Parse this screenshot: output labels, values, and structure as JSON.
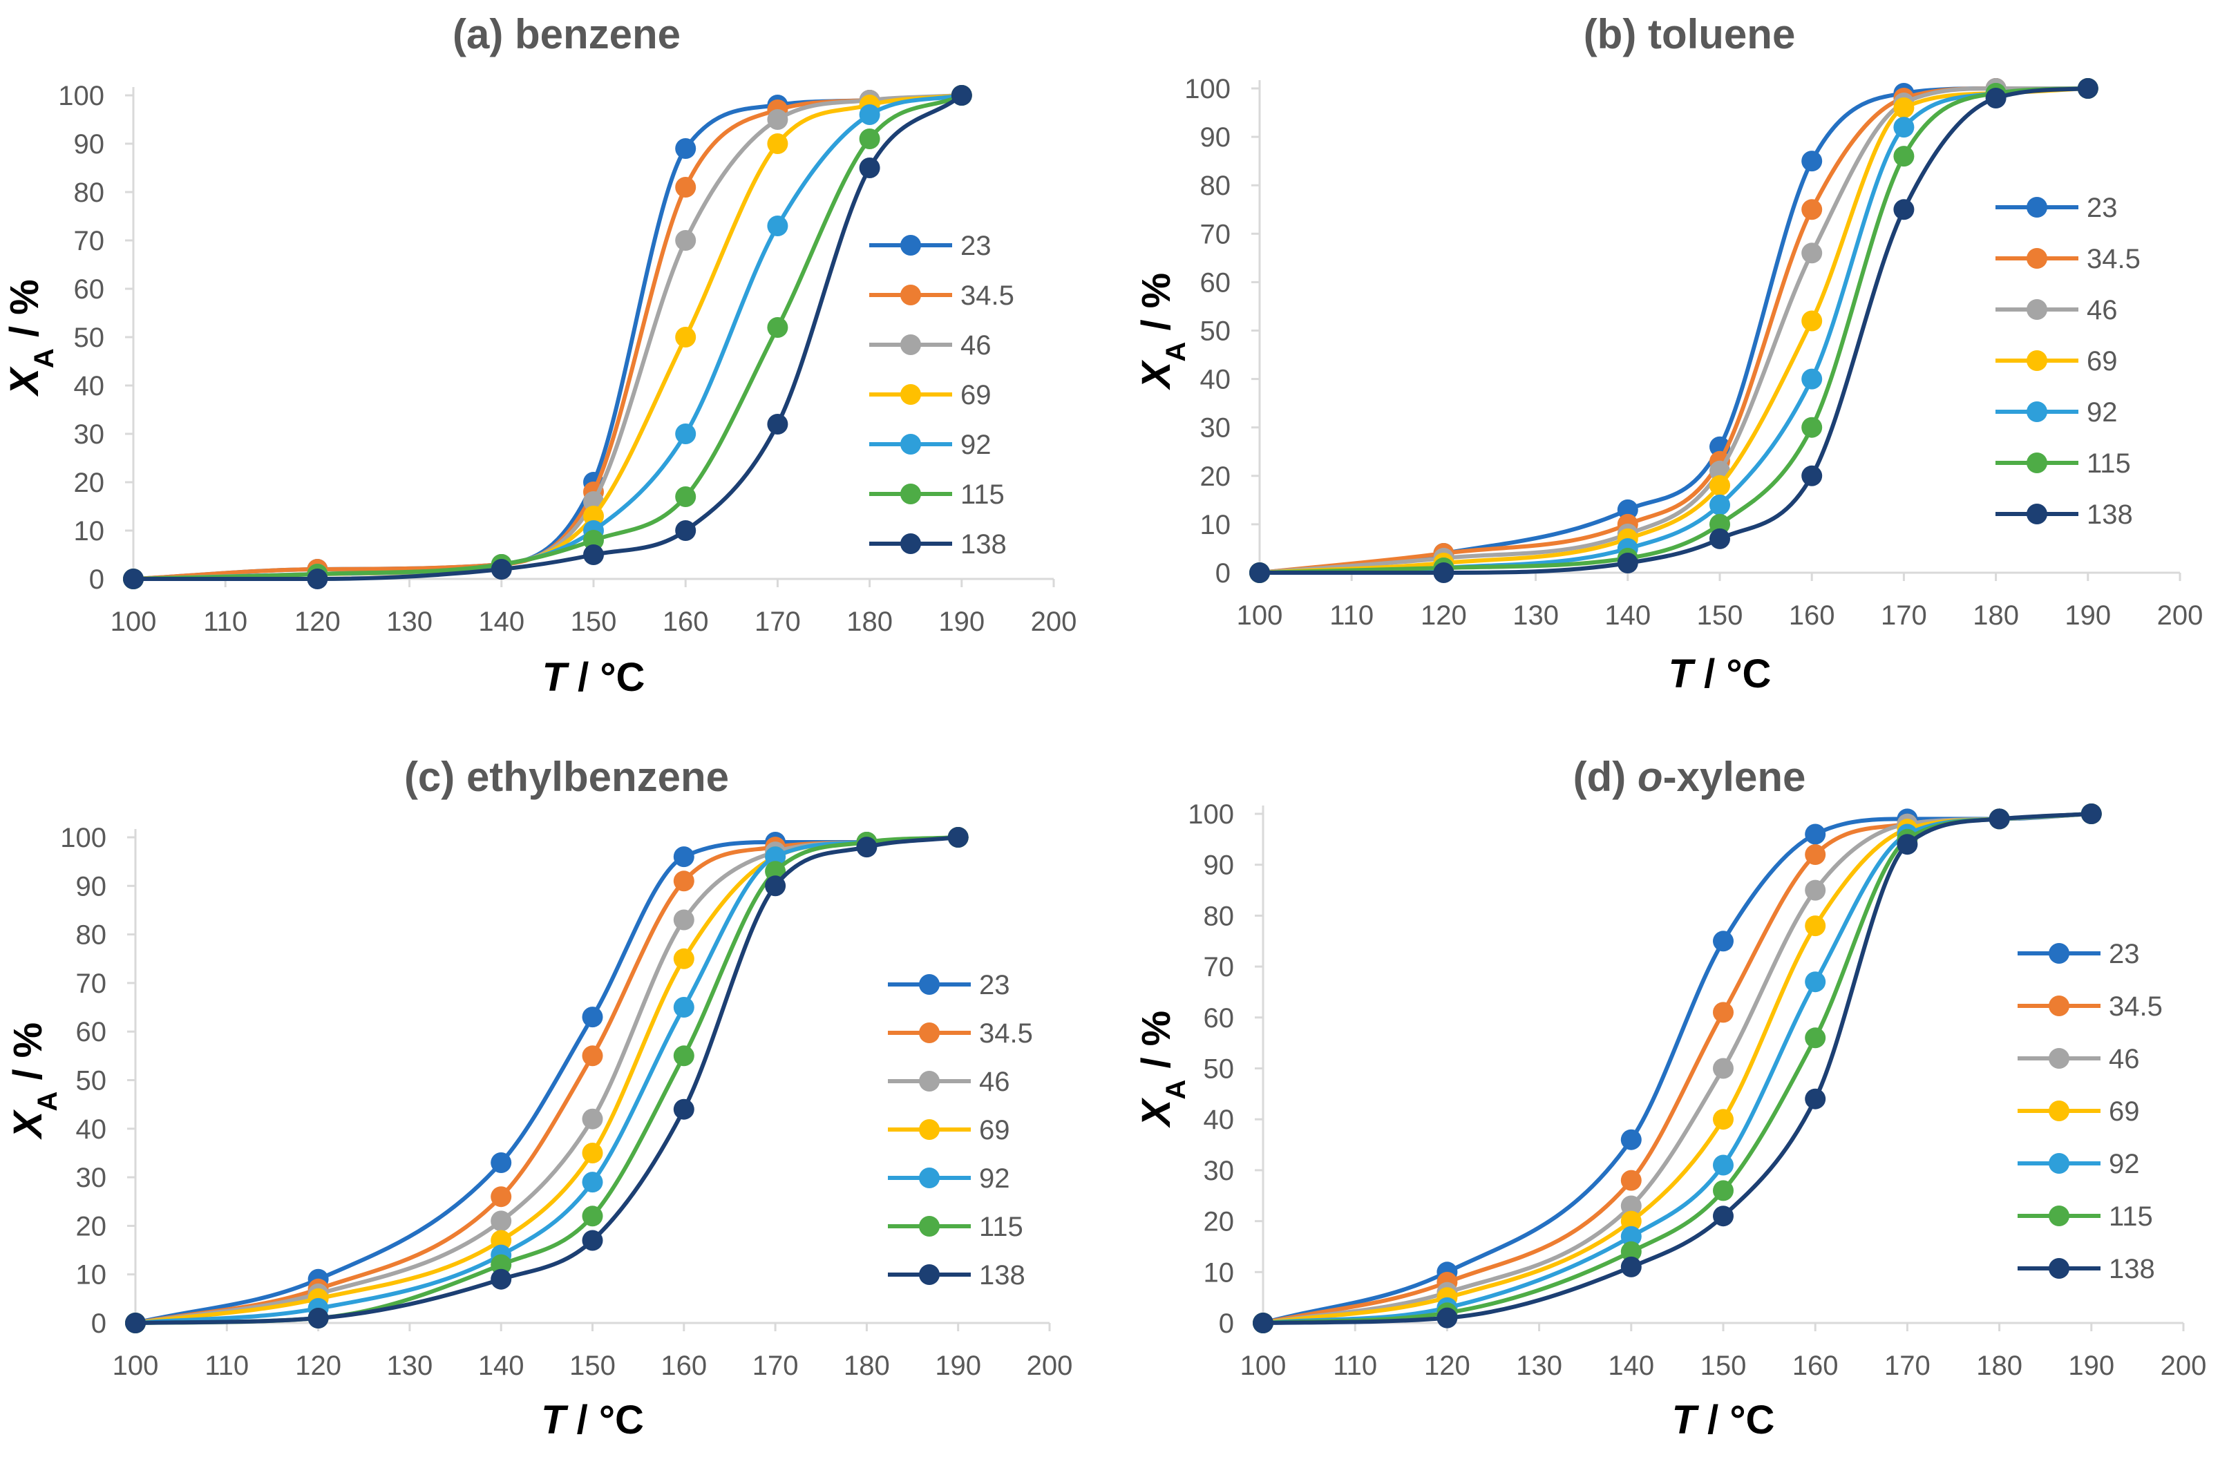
{
  "figure": {
    "series_names": [
      "23",
      "34.5",
      "46",
      "69",
      "92",
      "115",
      "138"
    ],
    "series_colors": [
      "#2470C2",
      "#ED7D31",
      "#A5A5A5",
      "#FFC000",
      "#2E9FDA",
      "#4EAC46",
      "#1C3F73"
    ],
    "axis_color": "#D9D9D9",
    "tick_text_color": "#595959"
  },
  "chart_data": [
    {
      "type": "line",
      "title_prefix": "(a) ",
      "title_main": "benzene",
      "title_suffix": "",
      "xlabel_var": "T",
      "xlabel_unit": " / °C",
      "ylabel_var": "X",
      "ylabel_sub": "A",
      "ylabel_unit": " / %",
      "xlim": [
        100,
        200
      ],
      "ylim": [
        0,
        100
      ],
      "x_ticks": [
        100,
        110,
        120,
        130,
        140,
        150,
        160,
        170,
        180,
        190,
        200
      ],
      "y_ticks": [
        0,
        10,
        20,
        30,
        40,
        50,
        60,
        70,
        80,
        90,
        100
      ],
      "legend_position": "right",
      "series": [
        {
          "name": "23",
          "x": [
            100,
            120,
            140,
            150,
            160,
            170,
            180,
            190
          ],
          "values": [
            0,
            2,
            3,
            20,
            89,
            98,
            99,
            100
          ]
        },
        {
          "name": "34.5",
          "x": [
            100,
            120,
            140,
            150,
            160,
            170,
            180,
            190
          ],
          "values": [
            0,
            2,
            3,
            18,
            81,
            97,
            99,
            100
          ]
        },
        {
          "name": "46",
          "x": [
            100,
            120,
            140,
            150,
            160,
            170,
            180,
            190
          ],
          "values": [
            0,
            1,
            3,
            16,
            70,
            95,
            99,
            100
          ]
        },
        {
          "name": "69",
          "x": [
            100,
            120,
            140,
            150,
            160,
            170,
            180,
            190
          ],
          "values": [
            0,
            1,
            3,
            13,
            50,
            90,
            98,
            100
          ]
        },
        {
          "name": "92",
          "x": [
            100,
            120,
            140,
            150,
            160,
            170,
            180,
            190
          ],
          "values": [
            0,
            1,
            3,
            10,
            30,
            73,
            96,
            100
          ]
        },
        {
          "name": "115",
          "x": [
            100,
            120,
            140,
            150,
            160,
            170,
            180,
            190
          ],
          "values": [
            0,
            1,
            3,
            8,
            17,
            52,
            91,
            100
          ]
        },
        {
          "name": "138",
          "x": [
            100,
            120,
            140,
            150,
            160,
            170,
            180,
            190
          ],
          "values": [
            0,
            0,
            2,
            5,
            10,
            32,
            85,
            100
          ]
        }
      ]
    },
    {
      "type": "line",
      "title_prefix": "(b) ",
      "title_main": "toluene",
      "title_suffix": "",
      "xlabel_var": "T",
      "xlabel_unit": " / °C",
      "ylabel_var": "X",
      "ylabel_sub": "A",
      "ylabel_unit": " / %",
      "xlim": [
        100,
        200
      ],
      "ylim": [
        0,
        100
      ],
      "x_ticks": [
        100,
        110,
        120,
        130,
        140,
        150,
        160,
        170,
        180,
        190,
        200
      ],
      "y_ticks": [
        0,
        10,
        20,
        30,
        40,
        50,
        60,
        70,
        80,
        90,
        100
      ],
      "legend_position": "right",
      "series": [
        {
          "name": "23",
          "x": [
            100,
            120,
            140,
            150,
            160,
            170,
            180,
            190
          ],
          "values": [
            0,
            4,
            13,
            26,
            85,
            99,
            100,
            100
          ]
        },
        {
          "name": "34.5",
          "x": [
            100,
            120,
            140,
            150,
            160,
            170,
            180,
            190
          ],
          "values": [
            0,
            4,
            10,
            23,
            75,
            98,
            100,
            100
          ]
        },
        {
          "name": "46",
          "x": [
            100,
            120,
            140,
            150,
            160,
            170,
            180,
            190
          ],
          "values": [
            0,
            3,
            8,
            21,
            66,
            97,
            100,
            100
          ]
        },
        {
          "name": "69",
          "x": [
            100,
            120,
            140,
            150,
            160,
            170,
            180,
            190
          ],
          "values": [
            0,
            2,
            7,
            18,
            52,
            96,
            99,
            100
          ]
        },
        {
          "name": "92",
          "x": [
            100,
            120,
            140,
            150,
            160,
            170,
            180,
            190
          ],
          "values": [
            0,
            1,
            5,
            14,
            40,
            92,
            99,
            100
          ]
        },
        {
          "name": "115",
          "x": [
            100,
            120,
            140,
            150,
            160,
            170,
            180,
            190
          ],
          "values": [
            0,
            1,
            3,
            10,
            30,
            86,
            99,
            100
          ]
        },
        {
          "name": "138",
          "x": [
            100,
            120,
            140,
            150,
            160,
            170,
            180,
            190
          ],
          "values": [
            0,
            0,
            2,
            7,
            20,
            75,
            98,
            100
          ]
        }
      ]
    },
    {
      "type": "line",
      "title_prefix": "(c) ",
      "title_main": "ethylbenzene",
      "title_suffix": "",
      "xlabel_var": "T",
      "xlabel_unit": " / °C",
      "ylabel_var": "X",
      "ylabel_sub": "A",
      "ylabel_unit": " / %",
      "xlim": [
        100,
        200
      ],
      "ylim": [
        0,
        100
      ],
      "x_ticks": [
        100,
        110,
        120,
        130,
        140,
        150,
        160,
        170,
        180,
        190,
        200
      ],
      "y_ticks": [
        0,
        10,
        20,
        30,
        40,
        50,
        60,
        70,
        80,
        90,
        100
      ],
      "legend_position": "right",
      "series": [
        {
          "name": "23",
          "x": [
            100,
            120,
            140,
            150,
            160,
            170,
            180,
            190
          ],
          "values": [
            0,
            9,
            33,
            63,
            96,
            99,
            99,
            100
          ]
        },
        {
          "name": "34.5",
          "x": [
            100,
            120,
            140,
            150,
            160,
            170,
            180,
            190
          ],
          "values": [
            0,
            7,
            26,
            55,
            91,
            98,
            99,
            100
          ]
        },
        {
          "name": "46",
          "x": [
            100,
            120,
            140,
            150,
            160,
            170,
            180,
            190
          ],
          "values": [
            0,
            6,
            21,
            42,
            83,
            97,
            99,
            100
          ]
        },
        {
          "name": "69",
          "x": [
            100,
            120,
            140,
            150,
            160,
            170,
            180,
            190
          ],
          "values": [
            0,
            5,
            17,
            35,
            75,
            96,
            99,
            100
          ]
        },
        {
          "name": "92",
          "x": [
            100,
            120,
            140,
            150,
            160,
            170,
            180,
            190
          ],
          "values": [
            0,
            3,
            14,
            29,
            65,
            96,
            99,
            100
          ]
        },
        {
          "name": "115",
          "x": [
            100,
            120,
            140,
            150,
            160,
            170,
            180,
            190
          ],
          "values": [
            0,
            1,
            12,
            22,
            55,
            93,
            99,
            100
          ]
        },
        {
          "name": "138",
          "x": [
            100,
            120,
            140,
            150,
            160,
            170,
            180,
            190
          ],
          "values": [
            0,
            1,
            9,
            17,
            44,
            90,
            98,
            100
          ]
        }
      ]
    },
    {
      "type": "line",
      "title_prefix": "(d) ",
      "title_main": "o",
      "title_suffix": "-xylene",
      "xlabel_var": "T",
      "xlabel_unit": " / °C",
      "ylabel_var": "X",
      "ylabel_sub": "A",
      "ylabel_unit": " / %",
      "xlim": [
        100,
        200
      ],
      "ylim": [
        0,
        100
      ],
      "x_ticks": [
        100,
        110,
        120,
        130,
        140,
        150,
        160,
        170,
        180,
        190,
        200
      ],
      "y_ticks": [
        0,
        10,
        20,
        30,
        40,
        50,
        60,
        70,
        80,
        90,
        100
      ],
      "legend_position": "right",
      "series": [
        {
          "name": "23",
          "x": [
            100,
            120,
            140,
            150,
            160,
            170,
            180,
            190
          ],
          "values": [
            0,
            10,
            36,
            75,
            96,
            99,
            99,
            100
          ]
        },
        {
          "name": "34.5",
          "x": [
            100,
            120,
            140,
            150,
            160,
            170,
            180,
            190
          ],
          "values": [
            0,
            8,
            28,
            61,
            92,
            98,
            99,
            100
          ]
        },
        {
          "name": "46",
          "x": [
            100,
            120,
            140,
            150,
            160,
            170,
            180,
            190
          ],
          "values": [
            0,
            6,
            23,
            50,
            85,
            98,
            99,
            100
          ]
        },
        {
          "name": "69",
          "x": [
            100,
            120,
            140,
            150,
            160,
            170,
            180,
            190
          ],
          "values": [
            0,
            5,
            20,
            40,
            78,
            97,
            99,
            100
          ]
        },
        {
          "name": "92",
          "x": [
            100,
            120,
            140,
            150,
            160,
            170,
            180,
            190
          ],
          "values": [
            0,
            3,
            17,
            31,
            67,
            96,
            99,
            100
          ]
        },
        {
          "name": "115",
          "x": [
            100,
            120,
            140,
            150,
            160,
            170,
            180,
            190
          ],
          "values": [
            0,
            2,
            14,
            26,
            56,
            95,
            99,
            100
          ]
        },
        {
          "name": "138",
          "x": [
            100,
            120,
            140,
            150,
            160,
            170,
            180,
            190
          ],
          "values": [
            0,
            1,
            11,
            21,
            44,
            94,
            99,
            100
          ]
        }
      ]
    }
  ]
}
